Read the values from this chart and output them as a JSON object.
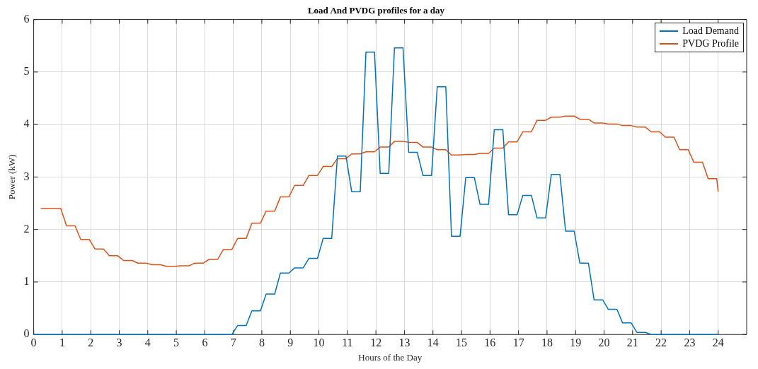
{
  "chart_data": {
    "type": "line",
    "title": "Load And PVDG profiles for a day",
    "xlabel": "Hours of the Day",
    "ylabel": "Power (kW)",
    "xlim": [
      0,
      25
    ],
    "xticks": [
      0,
      1,
      2,
      3,
      4,
      5,
      6,
      7,
      8,
      9,
      10,
      11,
      12,
      13,
      14,
      15,
      16,
      17,
      18,
      19,
      20,
      21,
      22,
      23,
      24
    ],
    "ylim": [
      0,
      6
    ],
    "yticks": [
      0,
      1,
      2,
      3,
      4,
      5,
      6
    ],
    "grid": true,
    "legend": "top right",
    "marker": "none",
    "line_style": "solid",
    "series": [
      {
        "name": "Load Demand",
        "color": "#0072bd",
        "x": [
          0,
          0.45,
          0.65,
          0.95,
          1.15,
          1.45,
          1.65,
          1.95,
          2.15,
          2.45,
          2.65,
          2.95,
          3.15,
          3.45,
          3.65,
          3.95,
          4.15,
          4.45,
          4.65,
          4.95,
          5.15,
          5.45,
          5.65,
          5.95,
          6.15,
          6.45,
          6.65,
          6.95,
          7.15,
          7.45,
          7.65,
          7.95,
          8.15,
          8.45,
          8.65,
          8.95,
          9.15,
          9.45,
          9.65,
          9.95,
          10.15,
          10.45,
          10.65,
          10.95,
          11.15,
          11.45,
          11.65,
          11.95,
          12.15,
          12.45,
          12.65,
          12.95,
          13.15,
          13.45,
          13.65,
          13.95,
          14.15,
          14.45,
          14.65,
          14.95,
          15.15,
          15.45,
          15.65,
          15.95,
          16.15,
          16.45,
          16.65,
          16.95,
          17.15,
          17.45,
          17.65,
          17.95,
          18.15,
          18.45,
          18.65,
          18.95,
          19.15,
          19.45,
          19.65,
          19.95,
          20.15,
          20.45,
          20.65,
          20.95,
          21.15,
          21.45,
          21.65,
          21.95,
          22.15,
          22.45,
          22.65,
          22.95,
          23.15,
          23.45,
          23.65,
          23.95,
          24
        ],
        "values": [
          0,
          0,
          0,
          0,
          0,
          0,
          0,
          0,
          0,
          0,
          0,
          0,
          0,
          0,
          0,
          0,
          0,
          0,
          0,
          0,
          0,
          0,
          0,
          0,
          0,
          0,
          0,
          0,
          0.17,
          0.17,
          0.45,
          0.45,
          0.77,
          0.77,
          1.17,
          1.17,
          1.27,
          1.27,
          1.45,
          1.45,
          1.83,
          1.83,
          3.4,
          3.4,
          2.72,
          2.72,
          5.38,
          5.38,
          3.07,
          3.07,
          5.46,
          5.46,
          3.47,
          3.47,
          3.03,
          3.03,
          4.72,
          4.72,
          1.87,
          1.87,
          2.99,
          2.99,
          2.48,
          2.48,
          3.9,
          3.9,
          2.28,
          2.28,
          2.65,
          2.65,
          2.22,
          2.22,
          3.05,
          3.05,
          1.97,
          1.97,
          1.36,
          1.36,
          0.66,
          0.66,
          0.48,
          0.48,
          0.22,
          0.22,
          0.04,
          0.04,
          0,
          0,
          0,
          0,
          0,
          0,
          0,
          0,
          0,
          0,
          0
        ]
      },
      {
        "name": "PVDG Profile",
        "color": "#d95319",
        "x": [
          0.25,
          0.45,
          0.65,
          0.95,
          1.15,
          1.45,
          1.65,
          1.95,
          2.15,
          2.45,
          2.65,
          2.95,
          3.15,
          3.45,
          3.65,
          3.95,
          4.15,
          4.45,
          4.65,
          4.95,
          5.15,
          5.45,
          5.65,
          5.95,
          6.15,
          6.45,
          6.65,
          6.95,
          7.15,
          7.45,
          7.65,
          7.95,
          8.15,
          8.45,
          8.65,
          8.95,
          9.15,
          9.45,
          9.65,
          9.95,
          10.15,
          10.45,
          10.65,
          10.95,
          11.15,
          11.45,
          11.65,
          11.95,
          12.15,
          12.45,
          12.65,
          12.95,
          13.15,
          13.45,
          13.65,
          13.95,
          14.15,
          14.45,
          14.65,
          14.95,
          15.15,
          15.45,
          15.65,
          15.95,
          16.15,
          16.45,
          16.65,
          16.95,
          17.15,
          17.45,
          17.65,
          17.95,
          18.15,
          18.45,
          18.65,
          18.95,
          19.15,
          19.45,
          19.65,
          19.95,
          20.15,
          20.45,
          20.65,
          20.95,
          21.15,
          21.45,
          21.65,
          21.95,
          22.15,
          22.45,
          22.65,
          22.95,
          23.15,
          23.45,
          23.65,
          23.95,
          24
        ],
        "values": [
          2.4,
          2.4,
          2.4,
          2.4,
          2.07,
          2.07,
          1.81,
          1.81,
          1.63,
          1.63,
          1.5,
          1.5,
          1.41,
          1.41,
          1.36,
          1.36,
          1.33,
          1.33,
          1.3,
          1.3,
          1.31,
          1.31,
          1.36,
          1.36,
          1.43,
          1.43,
          1.62,
          1.62,
          1.83,
          1.83,
          2.12,
          2.12,
          2.35,
          2.35,
          2.62,
          2.62,
          2.84,
          2.84,
          3.03,
          3.03,
          3.2,
          3.2,
          3.35,
          3.35,
          3.44,
          3.44,
          3.48,
          3.48,
          3.57,
          3.57,
          3.68,
          3.68,
          3.66,
          3.66,
          3.57,
          3.57,
          3.52,
          3.52,
          3.42,
          3.42,
          3.43,
          3.43,
          3.45,
          3.45,
          3.55,
          3.55,
          3.67,
          3.67,
          3.86,
          3.86,
          4.08,
          4.08,
          4.14,
          4.14,
          4.16,
          4.16,
          4.1,
          4.1,
          4.03,
          4.03,
          4.01,
          4.01,
          3.98,
          3.98,
          3.95,
          3.95,
          3.86,
          3.86,
          3.76,
          3.76,
          3.52,
          3.52,
          3.28,
          3.28,
          2.97,
          2.97,
          2.72
        ]
      }
    ]
  }
}
